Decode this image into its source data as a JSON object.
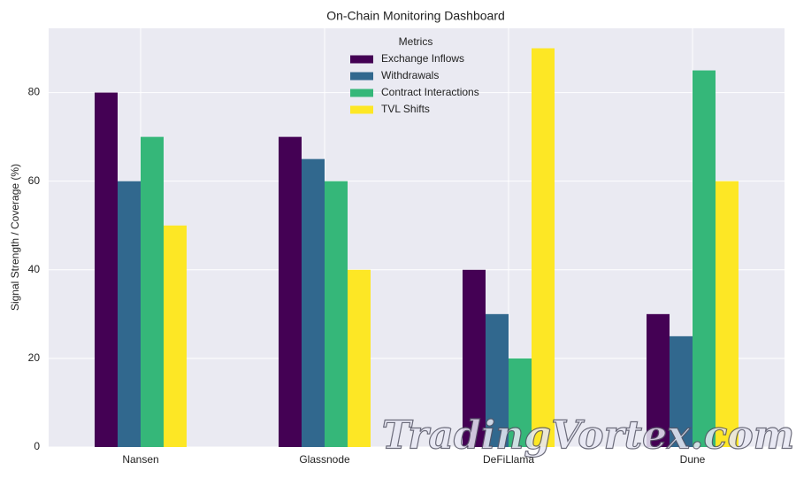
{
  "chart_data": {
    "type": "bar",
    "title": "On-Chain Monitoring Dashboard",
    "ylabel": "Signal Strength / Coverage (%)",
    "categories": [
      "Nansen",
      "Glassnode",
      "DeFiLlama",
      "Dune"
    ],
    "series": [
      {
        "name": "Exchange Inflows",
        "color": "#440154",
        "values": [
          80,
          70,
          40,
          30
        ]
      },
      {
        "name": "Withdrawals",
        "color": "#31688e",
        "values": [
          60,
          65,
          30,
          25
        ]
      },
      {
        "name": "Contract Interactions",
        "color": "#35b779",
        "values": [
          70,
          60,
          20,
          85
        ]
      },
      {
        "name": "TVL Shifts",
        "color": "#fde725",
        "values": [
          50,
          40,
          90,
          60
        ]
      }
    ],
    "legend_title": "Metrics",
    "legend": "upper center",
    "ylim": [
      0,
      94.5
    ],
    "yticks": [
      0,
      20,
      40,
      60,
      80
    ],
    "grid": true,
    "watermark": "TradingVortex.com"
  }
}
